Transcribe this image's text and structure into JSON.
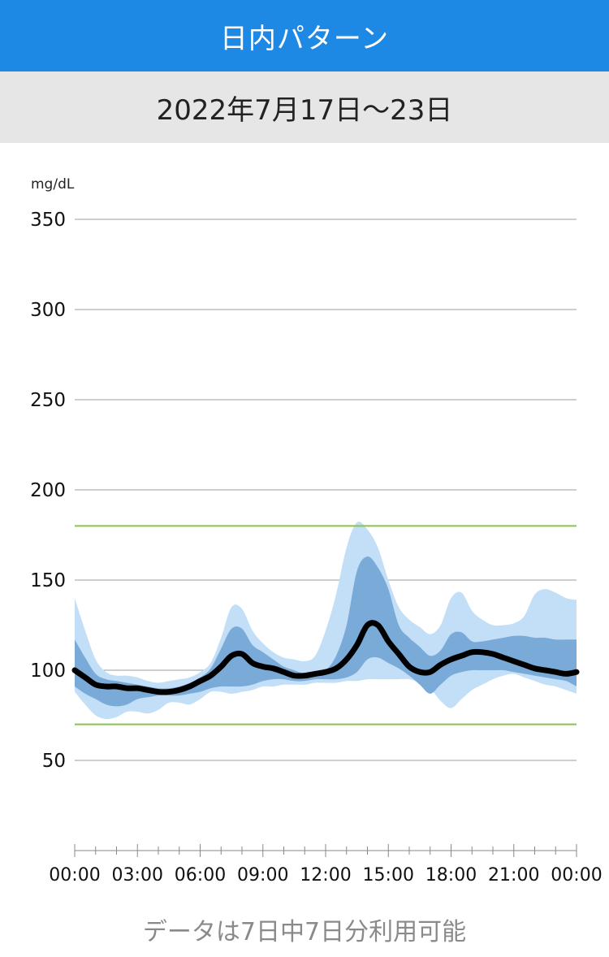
{
  "header": {
    "title": "日内パターン"
  },
  "date_range": "2022年7月17日～23日",
  "footer": {
    "availability": "データは7日中7日分利用可能"
  },
  "colors": {
    "header_bg": "#1e88e5",
    "band_outer": "#c3dff7",
    "band_inner": "#7aabd8",
    "median": "#000000",
    "target_line": "#8bc34a",
    "grid": "#9e9e9e"
  },
  "chart_data": {
    "type": "area",
    "ylabel": "mg/dL",
    "ylim": [
      0,
      350
    ],
    "y_ticks": [
      50,
      100,
      150,
      200,
      250,
      300,
      350
    ],
    "x_ticks": [
      "00:00",
      "03:00",
      "06:00",
      "09:00",
      "12:00",
      "15:00",
      "18:00",
      "21:00",
      "00:00"
    ],
    "target_range": [
      70,
      180
    ],
    "x": [
      0,
      0.5,
      1,
      1.5,
      2,
      2.5,
      3,
      3.5,
      4,
      4.5,
      5,
      5.5,
      6,
      6.5,
      7,
      7.5,
      8,
      8.5,
      9,
      9.5,
      10,
      10.5,
      11,
      11.5,
      12,
      12.5,
      13,
      13.5,
      14,
      14.5,
      15,
      15.5,
      16,
      16.5,
      17,
      17.5,
      18,
      18.5,
      19,
      19.5,
      20,
      20.5,
      21,
      21.5,
      22,
      22.5,
      23,
      23.5,
      24
    ],
    "series": [
      {
        "name": "p95",
        "values": [
          140,
          122,
          106,
          99,
          97,
          97,
          96,
          94,
          93,
          94,
          95,
          96,
          99,
          104,
          118,
          135,
          134,
          122,
          115,
          110,
          107,
          106,
          105,
          108,
          122,
          142,
          168,
          182,
          178,
          168,
          150,
          135,
          128,
          124,
          120,
          125,
          140,
          143,
          133,
          128,
          125,
          125,
          126,
          130,
          142,
          145,
          143,
          140,
          139
        ]
      },
      {
        "name": "p75",
        "values": [
          117,
          107,
          98,
          95,
          94,
          93,
          92,
          91,
          90,
          90,
          91,
          93,
          96,
          101,
          112,
          123,
          123,
          114,
          110,
          106,
          102,
          100,
          98,
          98,
          100,
          108,
          125,
          155,
          163,
          157,
          145,
          125,
          118,
          113,
          108,
          111,
          120,
          121,
          116,
          116,
          117,
          118,
          119,
          119,
          118,
          118,
          117,
          117,
          117
        ]
      },
      {
        "name": "median",
        "values": [
          100,
          96,
          92,
          91,
          91,
          90,
          90,
          89,
          88,
          88,
          89,
          91,
          94,
          97,
          102,
          108,
          109,
          104,
          102,
          101,
          99,
          97,
          97,
          98,
          99,
          101,
          106,
          114,
          125,
          125,
          116,
          109,
          102,
          99,
          99,
          103,
          106,
          108,
          110,
          110,
          109,
          107,
          105,
          103,
          101,
          100,
          99,
          98,
          99
        ]
      },
      {
        "name": "p25",
        "values": [
          91,
          87,
          84,
          81,
          80,
          81,
          84,
          85,
          86,
          86,
          86,
          87,
          88,
          90,
          91,
          91,
          91,
          92,
          94,
          95,
          95,
          94,
          94,
          95,
          95,
          95,
          96,
          99,
          106,
          107,
          104,
          101,
          97,
          92,
          87,
          92,
          97,
          99,
          100,
          100,
          100,
          100,
          99,
          98,
          97,
          96,
          95,
          94,
          91
        ]
      },
      {
        "name": "p5",
        "values": [
          88,
          81,
          75,
          73,
          74,
          77,
          77,
          76,
          78,
          82,
          82,
          81,
          84,
          88,
          88,
          87,
          88,
          89,
          91,
          91,
          92,
          92,
          92,
          93,
          93,
          93,
          94,
          94,
          95,
          95,
          95,
          95,
          95,
          93,
          90,
          83,
          79,
          84,
          89,
          92,
          95,
          97,
          98,
          96,
          94,
          92,
          91,
          89,
          87
        ]
      }
    ]
  }
}
